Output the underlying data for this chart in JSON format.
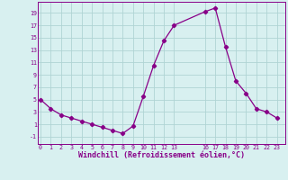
{
  "x": [
    0,
    1,
    2,
    3,
    4,
    5,
    6,
    7,
    8,
    9,
    10,
    11,
    12,
    13,
    16,
    17,
    18,
    19,
    20,
    21,
    22,
    23
  ],
  "y": [
    5,
    3.5,
    2.5,
    2,
    1.5,
    1,
    0.5,
    0,
    -0.5,
    0.7,
    5.5,
    10.5,
    14.5,
    17,
    19.2,
    19.8,
    13.5,
    8,
    6,
    3.5,
    3,
    2
  ],
  "line_color": "#880088",
  "marker": "D",
  "marker_size": 2.2,
  "bg_color": "#d8f0f0",
  "grid_color": "#b0d4d4",
  "xlabel": "Windchill (Refroidissement éolien,°C)",
  "xlabel_fontsize": 6.0,
  "yticks": [
    -1,
    1,
    3,
    5,
    7,
    9,
    11,
    13,
    15,
    17,
    19
  ],
  "xticks": [
    0,
    1,
    2,
    3,
    4,
    5,
    6,
    7,
    8,
    9,
    10,
    11,
    12,
    13,
    16,
    17,
    18,
    19,
    20,
    21,
    22,
    23
  ],
  "ylim": [
    -2.2,
    20.8
  ],
  "xlim": [
    -0.3,
    23.8
  ]
}
